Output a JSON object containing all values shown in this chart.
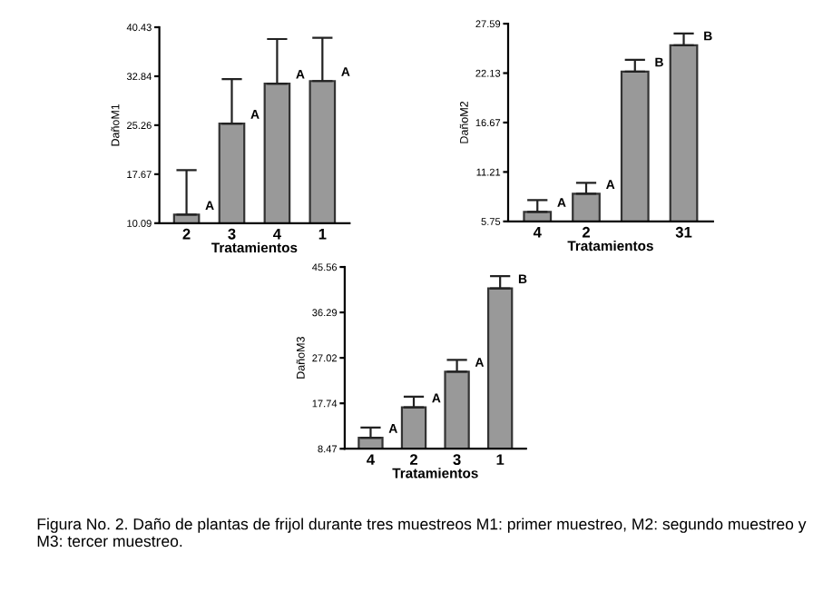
{
  "chart_data": [
    {
      "type": "bar",
      "xlabel": "Tratamientos",
      "ylabel": "DañoM1",
      "categories": [
        "2",
        "3",
        "4",
        "1"
      ],
      "color": "#999999",
      "values": [
        11.4,
        25.5,
        31.7,
        32.1
      ],
      "errors": [
        [
          11.4,
          18.3
        ],
        [
          25.5,
          32.4
        ],
        [
          31.7,
          38.6
        ],
        [
          32.1,
          38.8
        ]
      ],
      "ylim": [
        10.09,
        40.43
      ],
      "yticks": [
        10.09,
        17.67,
        25.26,
        32.84,
        40.43
      ],
      "grid": false,
      "annotations": [
        {
          "text": "A",
          "x": "2",
          "y": 11.4
        },
        {
          "text": "A",
          "x": "3",
          "y": 25.5
        },
        {
          "text": "A",
          "x": "4",
          "y": 31.7
        },
        {
          "text": "A",
          "x": "1",
          "y": 32.1
        },
        "Figura No. 2. Daño de plantas de frijol durante tres muestreos M1: primer muestreo, M2: segundo muestreo y M3: tercer muestreo."
      ]
    },
    {
      "type": "bar",
      "xlabel": "Tratamientos",
      "ylabel": "DañoM2",
      "categories": [
        "4",
        "2",
        null,
        "31"
      ],
      "color": "#999999",
      "values": [
        6.8,
        8.8,
        22.3,
        25.2
      ],
      "errors": [
        [
          6.8,
          8.1
        ],
        [
          8.8,
          10.0
        ],
        [
          22.3,
          23.6
        ],
        [
          25.2,
          26.5
        ]
      ],
      "ylim": [
        5.75,
        27.59
      ],
      "yticks": [
        5.75,
        11.21,
        16.67,
        22.13,
        27.59
      ],
      "grid": false,
      "annotations": [
        "A",
        "A",
        "B",
        "B"
      ]
    },
    {
      "type": "bar",
      "xlabel": "Tratamientos",
      "ylabel": "DañoM3",
      "categories": [
        "4",
        "2",
        "3",
        "1"
      ],
      "color": "#999999",
      "values": [
        10.7,
        16.9,
        24.2,
        41.2
      ],
      "errors": [
        [
          10.7,
          12.8
        ],
        [
          16.9,
          19.1
        ],
        [
          24.2,
          26.6
        ],
        [
          41.2,
          43.7
        ]
      ],
      "ylim": [
        8.47,
        45.56
      ],
      "yticks": [
        8.47,
        17.74,
        27.02,
        36.29,
        45.56
      ],
      "grid": false,
      "annotations": [
        {
          "text": "A",
          "x": "4",
          "y": 10.7
        },
        {
          "text": "A",
          "x": "2",
          "y": 16.9
        },
        {
          "text": "A",
          "x": "3",
          "y": 24.2
        },
        {
          "text": "B",
          "x": "1",
          "y": 41.2
        }
      ]
    }
  ]
}
